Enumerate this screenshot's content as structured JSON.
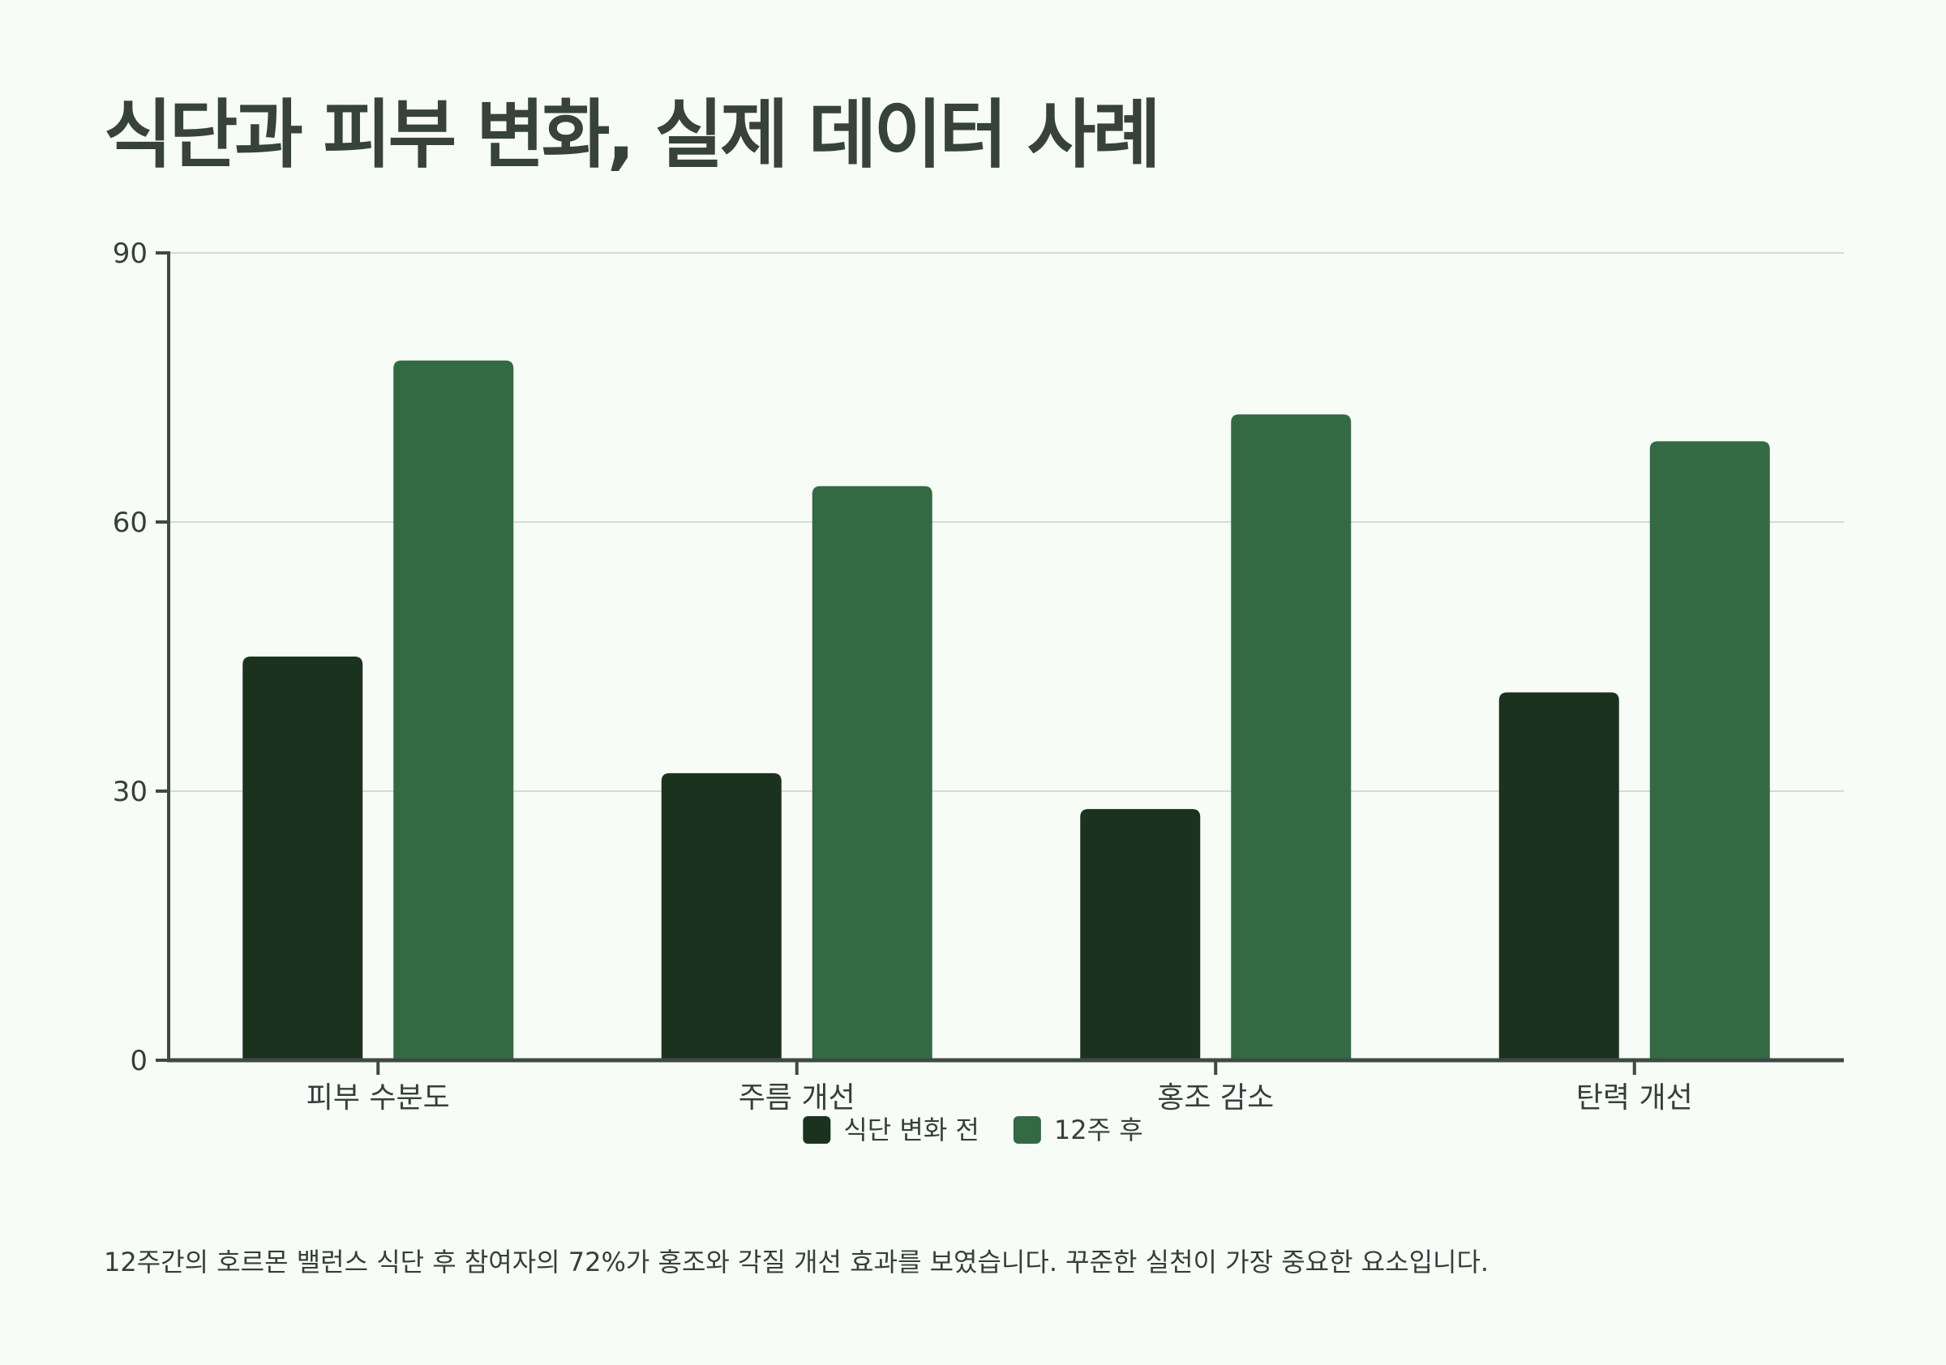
{
  "title": "식단과 피부 변화, 실제 데이터 사례",
  "caption": "12주간의 호르몬 밸런스 식단 후 참여자의 72%가 홍조와 각질 개선 효과를 보였습니다. 꾸준한 실천이 가장 중요한 요소입니다.",
  "chart_data": {
    "type": "bar",
    "categories": [
      "피부 수분도",
      "주름 개선",
      "홍조 감소",
      "탄력 개선"
    ],
    "series": [
      {
        "name": "식단 변화 전",
        "values": [
          45,
          32,
          28,
          41
        ],
        "color": "#1b321f"
      },
      {
        "name": "12주 후",
        "values": [
          78,
          64,
          72,
          69
        ],
        "color": "#336a43"
      }
    ],
    "ylim": [
      0,
      90
    ],
    "yticks": [
      0,
      30,
      60,
      90
    ],
    "grid": true,
    "legend": "bottom-center",
    "xlabel": "",
    "ylabel": ""
  }
}
